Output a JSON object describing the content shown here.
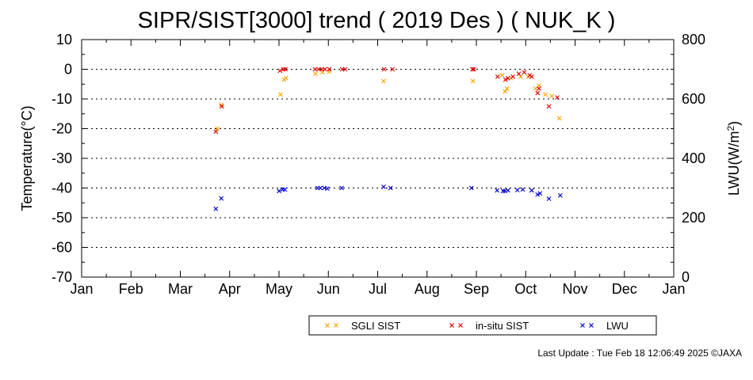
{
  "chart_data": {
    "type": "scatter",
    "title": "SIPR/SIST[3000] trend ( 2019 Des ) ( NUK_K )",
    "xlabel": "",
    "ylabel": "Temperature(°C)",
    "y2label_base": "LWU(W/m",
    "y2label_sup": "2",
    "y2label_end": ")",
    "x_ticks": [
      "Jan",
      "Feb",
      "Mar",
      "Apr",
      "May",
      "Jun",
      "Jul",
      "Aug",
      "Sep",
      "Oct",
      "Nov",
      "Dec",
      "Jan"
    ],
    "ylim": [
      -70,
      10
    ],
    "y_ticks": [
      "10",
      "0",
      "-10",
      "-20",
      "-30",
      "-40",
      "-50",
      "-60",
      "-70"
    ],
    "y2lim": [
      0,
      800
    ],
    "y2_ticks": [
      "800",
      "600",
      "400",
      "200",
      "0"
    ],
    "grid": "horizontal dotted",
    "legend_position": "bottom",
    "marker": "×",
    "series": [
      {
        "name": "SGLI SIST",
        "color": "#ffa500",
        "axis": "left",
        "points": [
          [
            2.75,
            -20.0
          ],
          [
            2.83,
            -12.0
          ],
          [
            4.03,
            -8.5
          ],
          [
            4.1,
            -3.5
          ],
          [
            4.14,
            -3.0
          ],
          [
            4.74,
            -1.5
          ],
          [
            4.88,
            -1.0
          ],
          [
            5.02,
            -0.8
          ],
          [
            6.12,
            -4.0
          ],
          [
            7.93,
            -4.0
          ],
          [
            8.52,
            -2.0
          ],
          [
            8.58,
            -7.5
          ],
          [
            8.62,
            -6.5
          ],
          [
            8.7,
            -3.0
          ],
          [
            8.9,
            -2.5
          ],
          [
            9.05,
            -2.5
          ],
          [
            9.2,
            -6.5
          ],
          [
            9.27,
            -5.5
          ],
          [
            9.4,
            -8.5
          ],
          [
            9.53,
            -9.0
          ],
          [
            9.68,
            -16.5
          ]
        ]
      },
      {
        "name": "in-situ SIST",
        "color": "#e00000",
        "axis": "left",
        "points": [
          [
            2.72,
            -21.0
          ],
          [
            2.84,
            -12.5
          ],
          [
            4.02,
            -0.5
          ],
          [
            4.09,
            0
          ],
          [
            4.13,
            0
          ],
          [
            4.73,
            0
          ],
          [
            4.8,
            0
          ],
          [
            4.87,
            0
          ],
          [
            4.93,
            0
          ],
          [
            5.02,
            0
          ],
          [
            5.28,
            0
          ],
          [
            5.34,
            0
          ],
          [
            6.13,
            0
          ],
          [
            6.3,
            0
          ],
          [
            7.92,
            0
          ],
          [
            7.95,
            0
          ],
          [
            8.43,
            -2.5
          ],
          [
            8.59,
            -3.5
          ],
          [
            8.64,
            -3.0
          ],
          [
            8.74,
            -2.5
          ],
          [
            8.86,
            -1.5
          ],
          [
            8.97,
            -1.0
          ],
          [
            9.08,
            -2.0
          ],
          [
            9.12,
            -2.5
          ],
          [
            9.24,
            -8.0
          ],
          [
            9.27,
            -6.5
          ],
          [
            9.47,
            -12.5
          ],
          [
            9.64,
            -9.5
          ]
        ]
      },
      {
        "name": "LWU",
        "color": "#0000cc",
        "axis": "right",
        "points": [
          [
            2.72,
            230
          ],
          [
            2.83,
            265
          ],
          [
            4.0,
            290
          ],
          [
            4.07,
            295
          ],
          [
            4.12,
            295
          ],
          [
            4.78,
            300
          ],
          [
            4.84,
            300
          ],
          [
            4.92,
            300
          ],
          [
            4.98,
            298
          ],
          [
            5.27,
            300
          ],
          [
            6.12,
            304
          ],
          [
            6.26,
            300
          ],
          [
            7.9,
            300
          ],
          [
            8.42,
            292
          ],
          [
            8.54,
            290
          ],
          [
            8.58,
            290
          ],
          [
            8.64,
            292
          ],
          [
            8.83,
            293
          ],
          [
            8.94,
            295
          ],
          [
            9.12,
            292
          ],
          [
            9.24,
            278
          ],
          [
            9.29,
            282
          ],
          [
            9.47,
            264
          ],
          [
            9.7,
            275
          ]
        ]
      }
    ]
  },
  "footer": "Last Update : Tue Feb 18 12:06:49 2025  ©JAXA"
}
